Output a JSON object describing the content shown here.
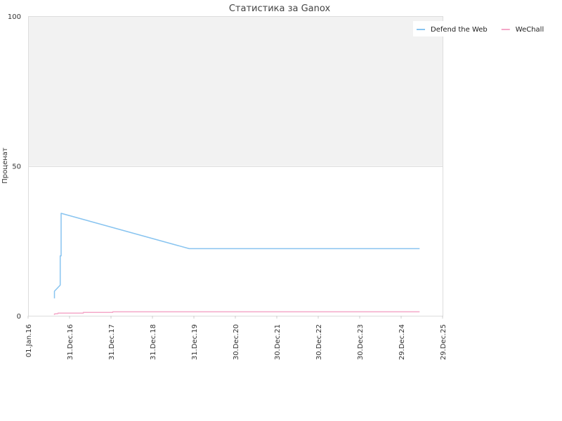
{
  "chart_data": {
    "type": "line",
    "title": "Статистика за Ganox",
    "xlabel": "",
    "ylabel": "Проценат",
    "ylim": [
      0,
      100
    ],
    "y_ticks": [
      0,
      50,
      100
    ],
    "y_tick_labels": [
      "0",
      "50",
      "100"
    ],
    "xlim": [
      "2016-01-01",
      "2025-12-29"
    ],
    "x_ticks": [
      "2016-01-01",
      "2016-12-31",
      "2017-12-31",
      "2018-12-31",
      "2019-12-31",
      "2020-12-30",
      "2021-12-30",
      "2022-12-30",
      "2023-12-30",
      "2024-12-29",
      "2025-12-29"
    ],
    "x_tick_labels": [
      "01.Jan.16",
      "31.Dec.16",
      "31.Dec.17",
      "31.Dec.18",
      "31.Dec.19",
      "30.Dec.20",
      "30.Dec.21",
      "30.Dec.22",
      "30.Dec.23",
      "29.Dec.24",
      "29.Dec.25"
    ],
    "band": {
      "from": 50,
      "to": 100,
      "color": "#f2f2f2"
    },
    "legend_position": "top-right",
    "series": [
      {
        "name": "Defend the Web",
        "color": "#88c4f0",
        "points": [
          [
            "2016-08-20",
            5.8
          ],
          [
            "2016-08-20",
            8.2
          ],
          [
            "2016-10-10",
            10.2
          ],
          [
            "2016-10-10",
            20.0
          ],
          [
            "2016-10-18",
            20.0
          ],
          [
            "2016-10-18",
            34.2
          ],
          [
            "2019-11-20",
            22.4
          ],
          [
            "2025-06-10",
            22.4
          ]
        ]
      },
      {
        "name": "WeChall",
        "color": "#f4a8c8",
        "points": [
          [
            "2016-08-20",
            0.3
          ],
          [
            "2016-08-20",
            0.6
          ],
          [
            "2016-09-20",
            0.7
          ],
          [
            "2016-09-20",
            0.9
          ],
          [
            "2017-05-01",
            0.9
          ],
          [
            "2017-05-01",
            1.1
          ],
          [
            "2018-01-15",
            1.1
          ],
          [
            "2018-01-15",
            1.3
          ],
          [
            "2025-06-10",
            1.3
          ]
        ]
      }
    ]
  }
}
